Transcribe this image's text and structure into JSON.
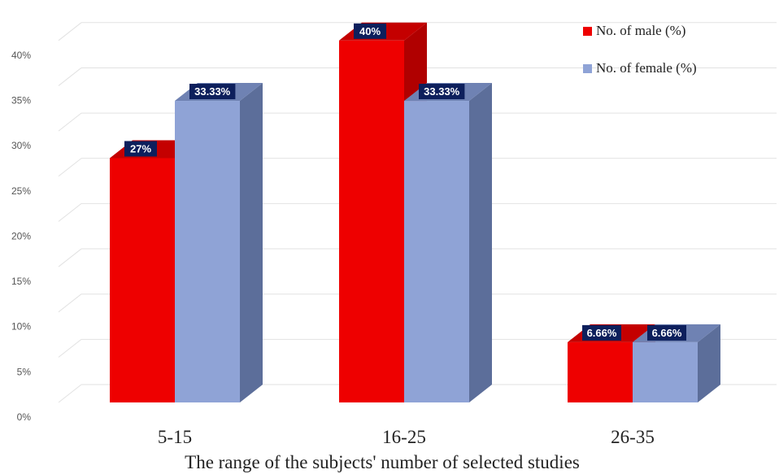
{
  "chart_data": {
    "type": "bar",
    "categories": [
      "5-15",
      "16-25",
      "26-35"
    ],
    "series": [
      {
        "name": "No. of male (%)",
        "values": [
          27,
          40,
          6.66
        ],
        "labels": [
          "27%",
          "40%",
          "6.66%"
        ],
        "color": "#ee0000",
        "side_color": "#b00000",
        "top_color": "#c40000"
      },
      {
        "name": "No. of female (%)",
        "values": [
          33.33,
          33.33,
          6.66
        ],
        "labels": [
          "33.33%",
          "33.33%",
          "6.66%"
        ],
        "color": "#8fa3d6",
        "side_color": "#5c6e9a",
        "top_color": "#6f82b3"
      }
    ],
    "y_ticks": [
      "0%",
      "5%",
      "10%",
      "15%",
      "20%",
      "25%",
      "30%",
      "35%",
      "40%"
    ],
    "ylim": [
      0,
      40
    ],
    "xlabel": "The range of the  subjects' number of selected studies",
    "ylabel": "",
    "grid": true,
    "legend_position": "top-right",
    "label_box_color": "#0d1f5c"
  }
}
